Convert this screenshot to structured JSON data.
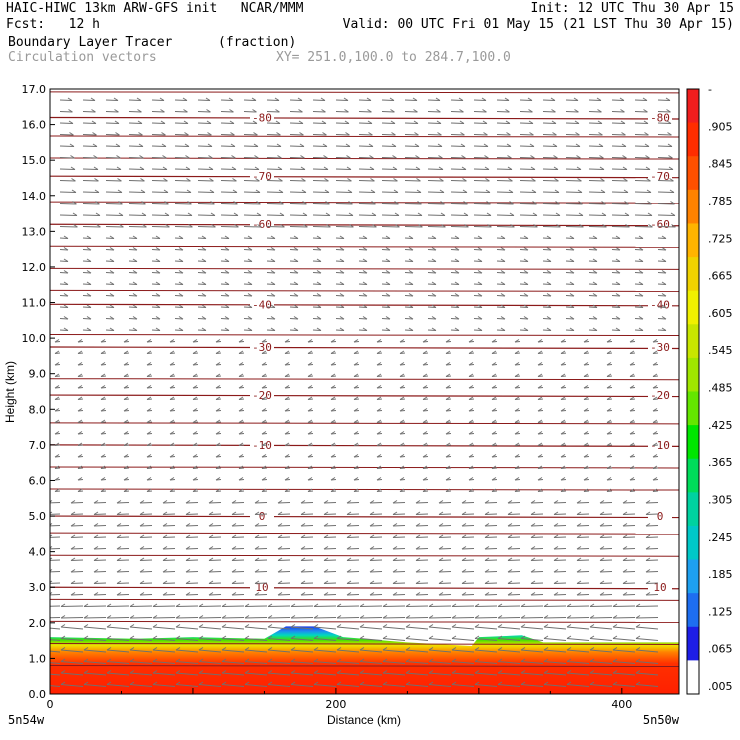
{
  "header": {
    "line1_left": "HAIC-HIWC 13km ARW-GFS init   NCAR/MMM",
    "line1_right": "Init: 12 UTC Thu 30 Apr 15",
    "line2_left": "Fcst:   12 h",
    "line2_right": "Valid: 00 UTC Fri 01 May 15 (21 LST Thu 30 Apr 15)",
    "field_name": "Boundary Layer Tracer",
    "field_units": "(fraction)",
    "vector_label": "Circulation vectors",
    "xy_label": "XY= 251.0,100.0 to 284.7,100.0"
  },
  "axes": {
    "ylabel": "Height (km)",
    "xlabel": "Distance (km)",
    "left_loc": "5n54w",
    "right_loc": "5n50w"
  },
  "chart_data": {
    "type": "heatmap",
    "title": "Boundary Layer Tracer",
    "units": "(fraction)",
    "xlabel": "Distance (km)",
    "ylabel": "Height (km)",
    "xlim": [
      0,
      440
    ],
    "ylim": [
      0,
      17
    ],
    "x_ticks": [
      0,
      200,
      400
    ],
    "y_ticks": [
      "0.0",
      "1.0",
      "2.0",
      "3.0",
      "4.0",
      "5.0",
      "6.0",
      "7.0",
      "8.0",
      "9.0",
      "10.0",
      "11.0",
      "12.0",
      "13.0",
      "14.0",
      "15.0",
      "16.0",
      "17.0"
    ],
    "colorbar_labels": [
      ".005",
      ".065",
      ".125",
      ".185",
      ".245",
      ".305",
      ".365",
      ".425",
      ".485",
      ".545",
      ".605",
      ".665",
      ".725",
      ".785",
      ".845",
      ".905",
      "-"
    ],
    "colorbar_colors": [
      "#ffffff",
      "#1e1ee6",
      "#1e6ef0",
      "#1ea0f0",
      "#00c8c8",
      "#00d2a0",
      "#00dc5a",
      "#00e600",
      "#64e600",
      "#a0e600",
      "#c8e600",
      "#f0f000",
      "#f0d200",
      "#ffb400",
      "#ff8200",
      "#ff5000",
      "#ff2d00",
      "#f01e1e"
    ],
    "boundary_layer_top_km": [
      {
        "x": 0,
        "y": 1.6
      },
      {
        "x": 60,
        "y": 1.55
      },
      {
        "x": 100,
        "y": 1.6
      },
      {
        "x": 150,
        "y": 1.55
      },
      {
        "x": 165,
        "y": 1.9
      },
      {
        "x": 185,
        "y": 1.9
      },
      {
        "x": 205,
        "y": 1.6
      },
      {
        "x": 250,
        "y": 1.45
      },
      {
        "x": 295,
        "y": 1.35
      },
      {
        "x": 300,
        "y": 1.6
      },
      {
        "x": 330,
        "y": 1.65
      },
      {
        "x": 345,
        "y": 1.45
      },
      {
        "x": 400,
        "y": 1.45
      },
      {
        "x": 440,
        "y": 1.45
      }
    ],
    "temperature_contours": [
      {
        "label": "10",
        "height_km": 3.0
      },
      {
        "label": "0",
        "height_km": 5.0
      },
      {
        "label": "-10",
        "height_km": 7.0
      },
      {
        "label": "-20",
        "height_km": 8.4
      },
      {
        "label": "-30",
        "height_km": 9.75
      },
      {
        "label": "-40",
        "height_km": 10.95
      },
      {
        "label": "-60",
        "height_km": 13.2
      },
      {
        "label": "-70",
        "height_km": 14.55
      },
      {
        "label": "-80",
        "height_km": 16.2
      }
    ],
    "grid": false,
    "legend": "colorbar right"
  }
}
